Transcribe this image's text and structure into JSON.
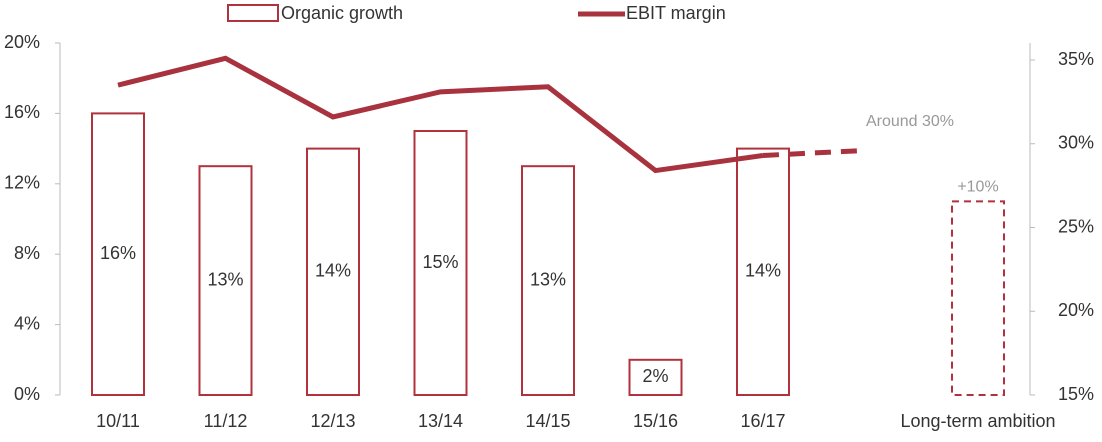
{
  "chart_data": {
    "type": "bar_line",
    "categories": [
      "10/11",
      "11/12",
      "12/13",
      "13/14",
      "14/15",
      "15/16",
      "16/17",
      "Long-term ambition"
    ],
    "series": [
      {
        "name": "Organic growth",
        "color": "#b0323c",
        "values": [
          16,
          13,
          14,
          15,
          13,
          2,
          14,
          11
        ],
        "value_labels": [
          "16%",
          "13%",
          "14%",
          "15%",
          "13%",
          "2%",
          "14%",
          null
        ]
      },
      {
        "name": "EBIT margin",
        "color": "#a8323e",
        "axis": "y2",
        "values": [
          33.5,
          35.1,
          31.6,
          33.1,
          33.4,
          28.4,
          29.3,
          29.6
        ]
      }
    ],
    "annotations": [
      "Around 30%",
      "+10%"
    ],
    "ylim": [
      0,
      20
    ],
    "yticks": [
      {
        "value": 0,
        "label": "0%"
      },
      {
        "value": 4,
        "label": "4%"
      },
      {
        "value": 8,
        "label": "8%"
      },
      {
        "value": 12,
        "label": "12%"
      },
      {
        "value": 16,
        "label": "16%"
      },
      {
        "value": 20,
        "label": "20%"
      }
    ],
    "y2lim": [
      15,
      35
    ],
    "y2ticks": [
      {
        "value": 15,
        "label": "15%"
      },
      {
        "value": 20,
        "label": "20%"
      },
      {
        "value": 25,
        "label": "25%"
      },
      {
        "value": 30,
        "label": "30%"
      },
      {
        "value": 35,
        "label": "35%"
      }
    ],
    "grid": false
  }
}
